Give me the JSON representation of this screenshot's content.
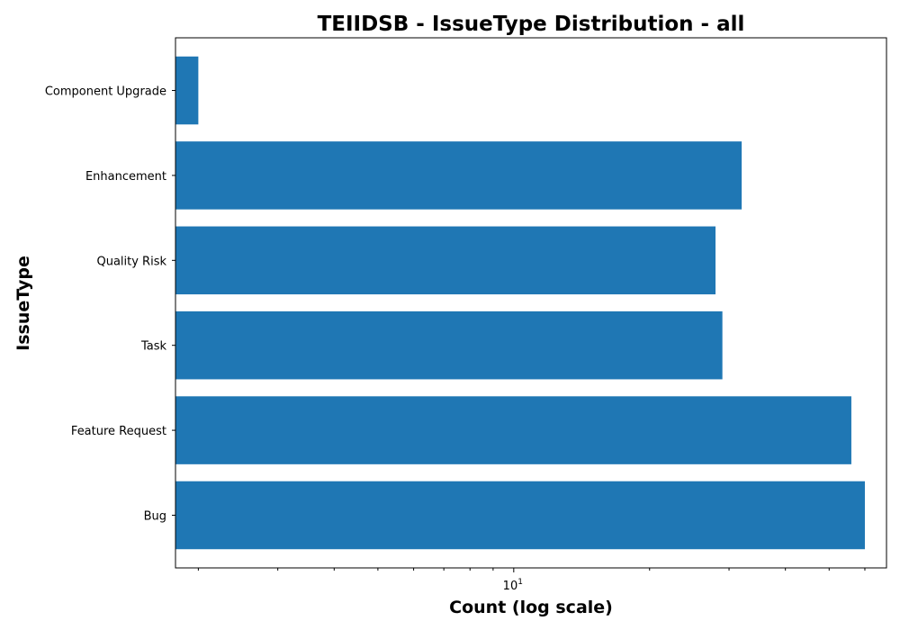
{
  "chart_data": {
    "type": "bar",
    "orientation": "horizontal",
    "title": "TEIIDSB - IssueType Distribution - all",
    "xlabel": "Count (log scale)",
    "ylabel": "IssueType",
    "x_scale": "log",
    "xlim": [
      1.78,
      67
    ],
    "major_tick_labels": [
      {
        "value": 10,
        "base": "10",
        "exponent": "1"
      }
    ],
    "minor_ticks": [
      2,
      3,
      4,
      5,
      6,
      7,
      8,
      9,
      20,
      30,
      40,
      50,
      60
    ],
    "grid": false,
    "legend": "none",
    "color": "#1f77b4",
    "categories": [
      "Bug",
      "Feature Request",
      "Task",
      "Quality Risk",
      "Enhancement",
      "Component Upgrade"
    ],
    "values": [
      60,
      56,
      29,
      28,
      32,
      2
    ]
  }
}
